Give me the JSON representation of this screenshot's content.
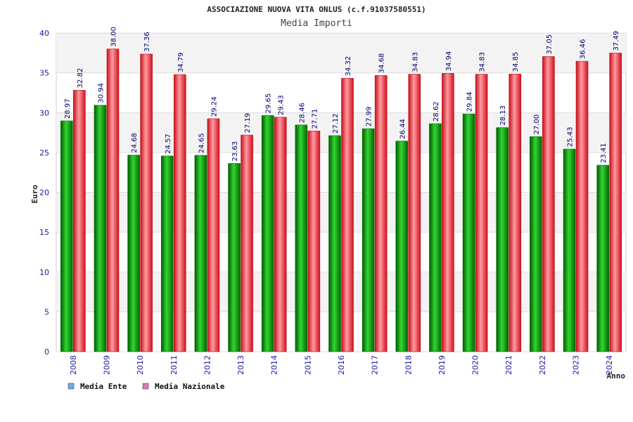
{
  "chart_data": {
    "type": "bar",
    "title": "ASSOCIAZIONE NUOVA VITA ONLUS (c.f.91037580551)",
    "subtitle": "Media Importi",
    "xlabel": "Anno",
    "ylabel": "Euro",
    "ylim": [
      0,
      40
    ],
    "yticks": [
      0,
      5,
      10,
      15,
      20,
      25,
      30,
      35,
      40
    ],
    "grid": true,
    "legend_position": "bottom-left",
    "categories": [
      "2008",
      "2009",
      "2010",
      "2011",
      "2012",
      "2013",
      "2014",
      "2015",
      "2016",
      "2017",
      "2018",
      "2019",
      "2020",
      "2021",
      "2022",
      "2023",
      "2024"
    ],
    "series": [
      {
        "name": "Media Ente",
        "color": "#00a000",
        "legend_color": "#6fa8e8",
        "values": [
          28.97,
          30.94,
          24.68,
          24.57,
          24.65,
          23.63,
          29.65,
          28.46,
          27.12,
          27.99,
          26.44,
          28.62,
          29.84,
          28.13,
          27.0,
          25.43,
          23.41
        ],
        "labels": [
          "28.97",
          "30.94",
          "24.68",
          "24.57",
          "24.65",
          "23.63",
          "29.65",
          "28.46",
          "27.12",
          "27.99",
          "26.44",
          "28.62",
          "29.84",
          "28.13",
          "27.00",
          "25.43",
          "23.41"
        ]
      },
      {
        "name": "Media Nazionale",
        "color": "#e8202a",
        "legend_color": "#d97ab0",
        "values": [
          32.82,
          38.0,
          37.36,
          34.79,
          29.24,
          27.19,
          29.43,
          27.71,
          34.32,
          34.68,
          34.83,
          34.94,
          34.83,
          34.85,
          37.05,
          36.46,
          37.49
        ],
        "labels": [
          "32.82",
          "38.00",
          "37.36",
          "34.79",
          "29.24",
          "27.19",
          "29.43",
          "27.71",
          "34.32",
          "34.68",
          "34.83",
          "34.94",
          "34.83",
          "34.85",
          "37.05",
          "36.46",
          "37.49"
        ]
      }
    ]
  }
}
